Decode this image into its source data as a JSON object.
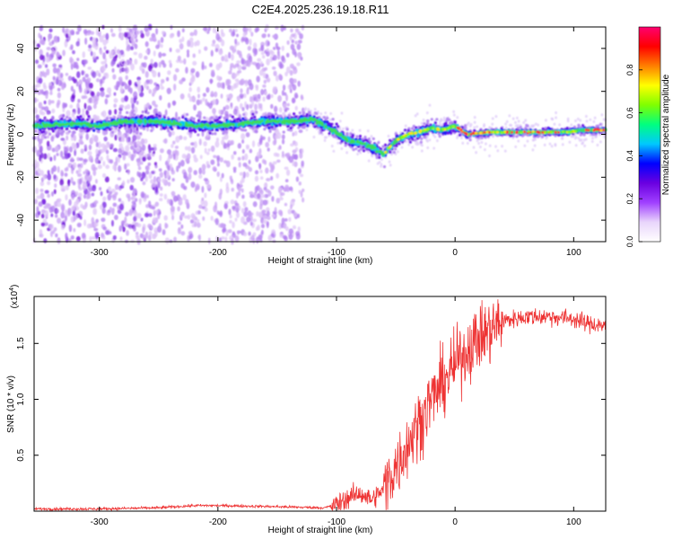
{
  "chart_data": [
    {
      "type": "heatmap",
      "title": "C2E4.2025.236.19.18.R11",
      "xlabel": "Height of straight line (km)",
      "ylabel": "Frequency (Hz)",
      "xlim": [
        -355,
        127
      ],
      "ylim": [
        -50,
        50
      ],
      "xticks": [
        -300,
        -200,
        -100,
        0,
        100
      ],
      "yticks": [
        -40,
        -20,
        0,
        20,
        40
      ],
      "xtick_labels": [
        "-300",
        "-200",
        "-100",
        "0",
        "100"
      ],
      "ytick_labels": [
        "-40",
        "-20",
        "0",
        "20",
        "40"
      ],
      "ridge": {
        "x": [
          -355,
          -320,
          -300,
          -280,
          -250,
          -220,
          -200,
          -180,
          -160,
          -140,
          -120,
          -110,
          -100,
          -90,
          -80,
          -70,
          -60,
          -55,
          -50,
          -40,
          -30,
          -20,
          -10,
          0,
          10,
          30,
          50,
          70,
          90,
          110,
          127
        ],
        "y": [
          4,
          5,
          4,
          6,
          6,
          4,
          4,
          5,
          6,
          6,
          7,
          4,
          1,
          -3,
          -4,
          -6,
          -9,
          -6,
          -3,
          0,
          1,
          3,
          2,
          4,
          0,
          1,
          1,
          1,
          1,
          2,
          2
        ]
      },
      "colorbar": {
        "label": "Normalized spectral amplitude",
        "range": [
          0.0,
          1.0
        ],
        "ticks": [
          0.0,
          0.2,
          0.4,
          0.6,
          0.8
        ],
        "tick_labels": [
          "0.0",
          "0.2",
          "0.4",
          "0.6",
          "0.8"
        ],
        "colors": [
          "#ffffff",
          "#e9d5fb",
          "#a040ff",
          "#6a00e0",
          "#0000ff",
          "#00c8ff",
          "#00ff80",
          "#7fff00",
          "#ffff00",
          "#ff7f00",
          "#ff0000",
          "#ff0070"
        ]
      }
    },
    {
      "type": "line",
      "xlabel": "Height of straight line (km)",
      "ylabel": "SNR (10 * v/v)",
      "scale_label": "(x10",
      "scale_exp": "4",
      "scale_close": ")",
      "xlim": [
        -355,
        127
      ],
      "ylim": [
        0,
        1.92
      ],
      "xticks": [
        -300,
        -200,
        -100,
        0,
        100
      ],
      "yticks": [
        0.5,
        1.0,
        1.5
      ],
      "xtick_labels": [
        "-300",
        "-200",
        "-100",
        "0",
        "100"
      ],
      "ytick_labels": [
        "0.5",
        "1.0",
        "1.5"
      ],
      "color": "#ee3333",
      "trend": {
        "x": [
          -355,
          -300,
          -250,
          -220,
          -200,
          -150,
          -110,
          -100,
          -90,
          -80,
          -70,
          -60,
          -50,
          -40,
          -30,
          -20,
          -10,
          0,
          10,
          20,
          30,
          40,
          60,
          80,
          100,
          110,
          127
        ],
        "y": [
          0.02,
          0.02,
          0.03,
          0.05,
          0.05,
          0.04,
          0.03,
          0.06,
          0.12,
          0.16,
          0.1,
          0.2,
          0.4,
          0.6,
          0.8,
          1.0,
          1.15,
          1.3,
          1.45,
          1.55,
          1.62,
          1.7,
          1.74,
          1.74,
          1.72,
          1.68,
          1.66
        ]
      }
    }
  ]
}
